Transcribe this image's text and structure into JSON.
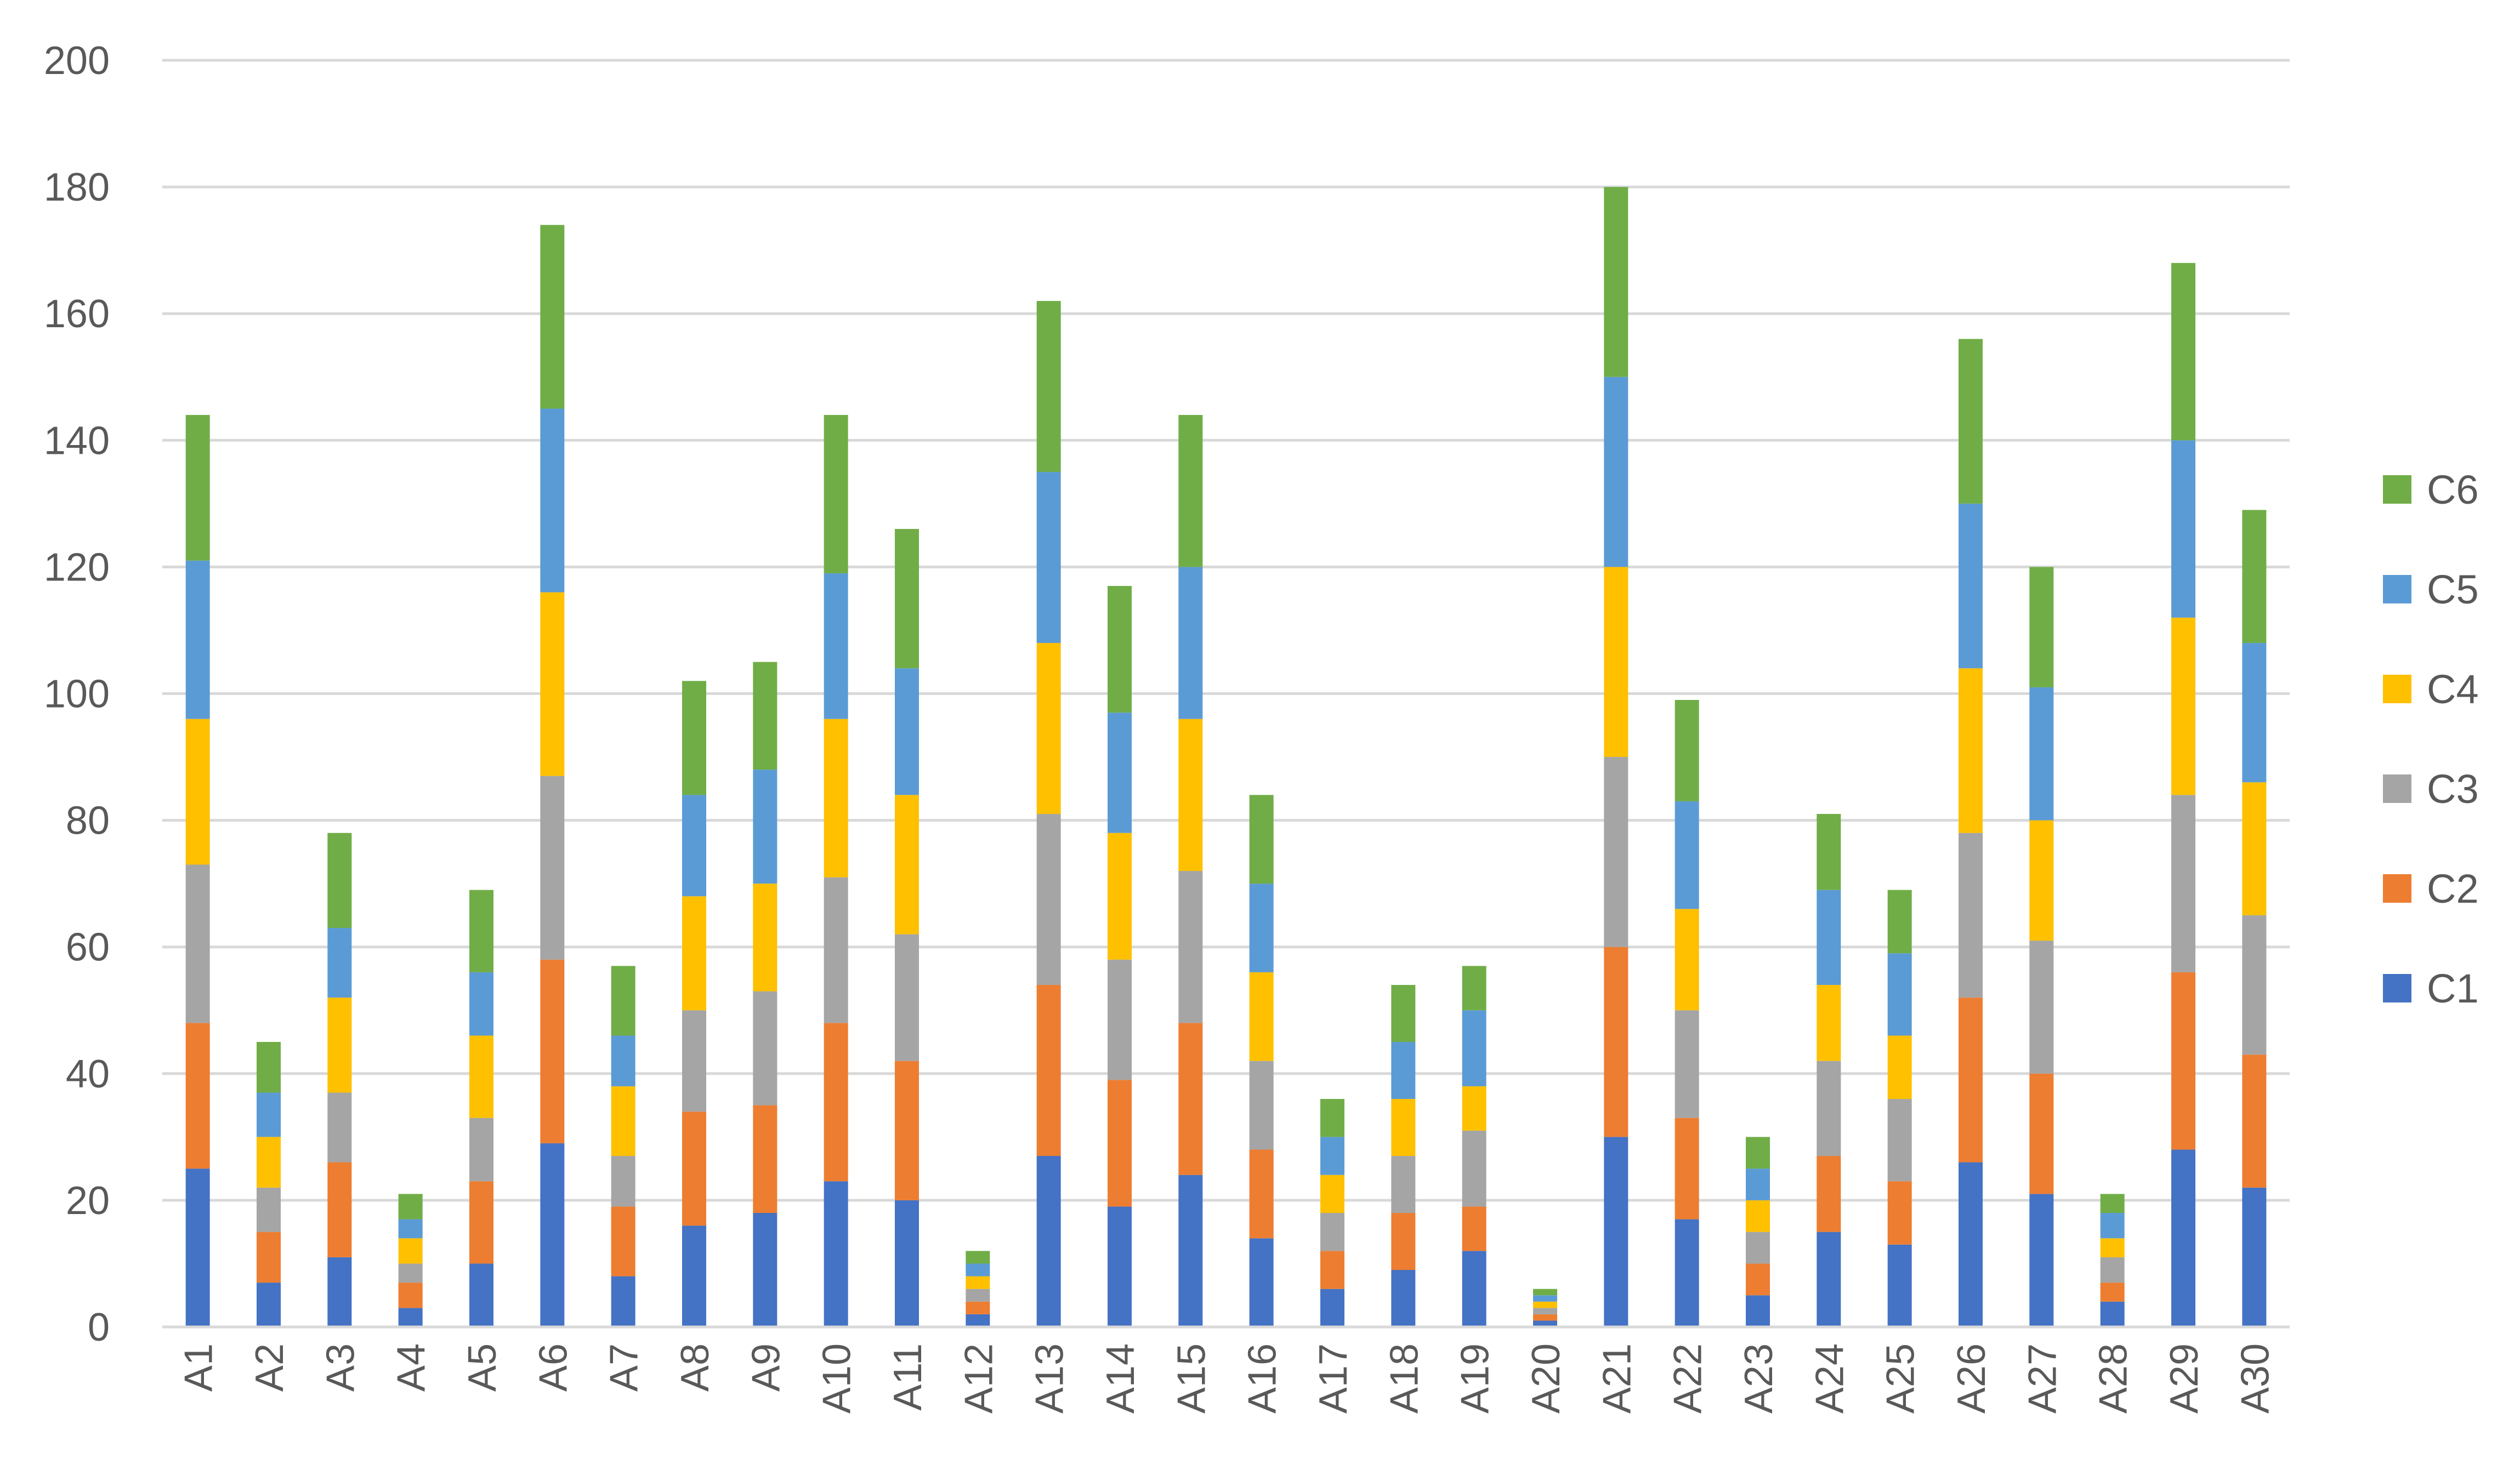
{
  "chart_data": {
    "type": "bar",
    "stacked": true,
    "title": "",
    "xlabel": "",
    "ylabel": "",
    "ylim": [
      0,
      200
    ],
    "y_ticks": [
      0,
      20,
      40,
      60,
      80,
      100,
      120,
      140,
      160,
      180,
      200
    ],
    "grid": true,
    "legend_position": "right",
    "categories": [
      "A1",
      "A2",
      "A3",
      "A4",
      "A5",
      "A6",
      "A7",
      "A8",
      "A9",
      "A10",
      "A11",
      "A12",
      "A13",
      "A14",
      "A15",
      "A16",
      "A17",
      "A18",
      "A19",
      "A20",
      "A21",
      "A22",
      "A23",
      "A24",
      "A25",
      "A26",
      "A27",
      "A28",
      "A29",
      "A30"
    ],
    "series": [
      {
        "name": "C1",
        "color": "#4472C4",
        "values": [
          25,
          7,
          11,
          3,
          10,
          29,
          8,
          16,
          18,
          23,
          20,
          2,
          27,
          19,
          24,
          14,
          6,
          9,
          12,
          1,
          30,
          17,
          5,
          15,
          13,
          26,
          21,
          4,
          28,
          22
        ]
      },
      {
        "name": "C2",
        "color": "#ED7D31",
        "values": [
          23,
          8,
          15,
          4,
          13,
          29,
          11,
          18,
          17,
          25,
          22,
          2,
          27,
          20,
          24,
          14,
          6,
          9,
          7,
          1,
          30,
          16,
          5,
          12,
          10,
          26,
          19,
          3,
          28,
          21
        ]
      },
      {
        "name": "C3",
        "color": "#A5A5A5",
        "values": [
          25,
          7,
          11,
          3,
          10,
          29,
          8,
          16,
          18,
          23,
          20,
          2,
          27,
          19,
          24,
          14,
          6,
          9,
          12,
          1,
          30,
          17,
          5,
          15,
          13,
          26,
          21,
          4,
          28,
          22
        ]
      },
      {
        "name": "C4",
        "color": "#FFC000",
        "values": [
          23,
          8,
          15,
          4,
          13,
          29,
          11,
          18,
          17,
          25,
          22,
          2,
          27,
          20,
          24,
          14,
          6,
          9,
          7,
          1,
          30,
          16,
          5,
          12,
          10,
          26,
          19,
          3,
          28,
          21
        ]
      },
      {
        "name": "C5",
        "color": "#5B9BD5",
        "values": [
          25,
          7,
          11,
          3,
          10,
          29,
          8,
          16,
          18,
          23,
          20,
          2,
          27,
          19,
          24,
          14,
          6,
          9,
          12,
          1,
          30,
          17,
          5,
          15,
          13,
          26,
          21,
          4,
          28,
          22
        ]
      },
      {
        "name": "C6",
        "color": "#70AD47",
        "values": [
          23,
          8,
          15,
          4,
          13,
          29,
          11,
          18,
          17,
          25,
          22,
          2,
          27,
          20,
          24,
          14,
          6,
          9,
          7,
          1,
          30,
          16,
          5,
          12,
          10,
          26,
          19,
          3,
          28,
          21
        ]
      }
    ]
  }
}
